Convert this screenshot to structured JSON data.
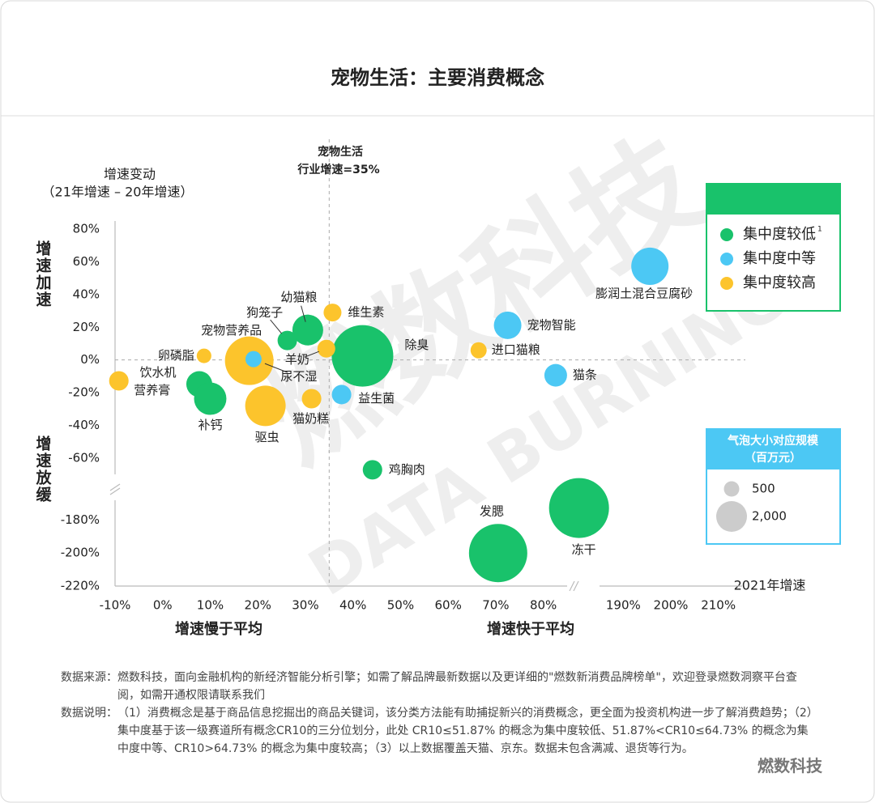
{
  "chart_data": {
    "type": "bubble",
    "title": "宠物生活：主要消费概念",
    "avg_label": [
      "宠物生活",
      "行业增速=35%"
    ],
    "avg_x": 35,
    "hline": 0,
    "y_title": [
      "增速变动",
      "（21年增速 – 20年增速）"
    ],
    "x_title": "2021年增速",
    "quadrants": {
      "top": "增速加速",
      "bottom": "增速放缓",
      "left": "增速慢于平均",
      "right": "增速快于平均"
    },
    "x_segments": [
      {
        "xlim": [
          -10,
          85
        ],
        "xticks": [
          {
            "value": -10,
            "label": "-10%"
          },
          {
            "value": 0,
            "label": "0%"
          },
          {
            "value": 10,
            "label": "10%"
          },
          {
            "value": 20,
            "label": "20%"
          },
          {
            "value": 30,
            "label": "30%"
          },
          {
            "value": 40,
            "label": "40%"
          },
          {
            "value": 50,
            "label": "50%"
          },
          {
            "value": 60,
            "label": "60%"
          },
          {
            "value": 70,
            "label": "70%"
          },
          {
            "value": 80,
            "label": "80%"
          }
        ]
      },
      {
        "xlim": [
          185,
          215
        ],
        "xticks": [
          {
            "value": 190,
            "label": "190%"
          },
          {
            "value": 200,
            "label": "200%"
          },
          {
            "value": 210,
            "label": "210%"
          }
        ]
      }
    ],
    "y_segments": [
      {
        "ylim": [
          -70,
          85
        ],
        "yticks": [
          {
            "value": 80,
            "label": "80%"
          },
          {
            "value": 60,
            "label": "60%"
          },
          {
            "value": 40,
            "label": "40%"
          },
          {
            "value": 20,
            "label": "20%"
          },
          {
            "value": 0,
            "label": "0%"
          },
          {
            "value": -20,
            "label": "-20%"
          },
          {
            "value": -40,
            "label": "-40%"
          },
          {
            "value": -60,
            "label": "-60%"
          }
        ]
      },
      {
        "ylim": [
          -220,
          -168
        ],
        "yticks": [
          {
            "value": -180,
            "label": "-180%"
          },
          {
            "value": -200,
            "label": "-200%"
          },
          {
            "value": -220,
            "label": "-220%"
          }
        ]
      }
    ],
    "series": [
      {
        "name": "集中度较低",
        "name_note": "1",
        "color": "#19c26b",
        "labels": [
          "除臭",
          "幼猫粮",
          "狗笼子",
          "饮水机",
          "补钙",
          "鸡胸肉",
          "发腮",
          "冻干"
        ],
        "x": [
          42,
          30.5,
          26.2,
          7.7,
          10,
          44.1,
          70.5,
          87.5
        ],
        "values": [
          2.5,
          18.3,
          11.9,
          -14.8,
          -23.7,
          -67.2,
          -200,
          -172.7
        ],
        "sizes": [
          8000,
          2000,
          800,
          1420,
          2210,
          800,
          7175,
          7580
        ]
      },
      {
        "name": "集中度中等",
        "color": "#4cc8f4",
        "labels": [
          "膨润土混合豆腐砂",
          "宠物智能",
          "猫条",
          "尿不湿",
          "益生菌"
        ],
        "x": [
          195.6,
          72.5,
          82.6,
          19.1,
          37.6
        ],
        "values": [
          57.3,
          21.2,
          -9.4,
          0.5,
          -21.2
        ],
        "sizes": [
          2930,
          1600,
          1085,
          550,
          800
        ]
      },
      {
        "name": "集中度较高",
        "color": "#fcc42c",
        "labels": [
          "进口猫粮",
          "维生素",
          "羊奶",
          "宠物营养品",
          "卵磷脂",
          "营养膏",
          "驱虫",
          "猫奶糕"
        ],
        "x": [
          66.4,
          35.7,
          34.4,
          18.2,
          8.7,
          -9.2,
          21.6,
          31.3
        ],
        "values": [
          5.9,
          29,
          6.9,
          -0.5,
          2.5,
          -12.8,
          -28.1,
          -23.7
        ],
        "sizes": [
          550,
          670,
          670,
          4980,
          450,
          800,
          3460,
          800
        ]
      }
    ],
    "size_legend": {
      "title": "气泡大小对应规模",
      "unit": "（百万元）",
      "sizes": [
        500,
        {
          "value": 2000,
          "label": "2,000"
        }
      ]
    },
    "watermark": [
      "燃数科技",
      "DATA BURNING"
    ]
  },
  "notes": {
    "source_label": "数据来源：",
    "source": "燃数科技，面向金融机构的新经济智能分析引擎；如需了解品牌最新数据以及更详细的\"燃数新消费品牌榜单\"，欢迎登录燃数洞察平台查阅，如需开通权限请联系我们",
    "desc_label": "数据说明：",
    "desc": "（1）消费概念是基于商品信息挖掘出的商品关键词，该分类方法能有助捕捉新兴的消费概念，更全面为投资机构进一步了解消费趋势；（2）集中度基于该一级赛道所有概念CR10的三分位划分，此处 CR10≤51.87% 的概念为集中度较低、51.87%<CR10≤64.73% 的概念为集中度中等、CR10>64.73% 的概念为集中度较高；（3）以上数据覆盖天猫、京东。数据未包含满减、退货等行为。"
  },
  "brand": "燃数科技"
}
